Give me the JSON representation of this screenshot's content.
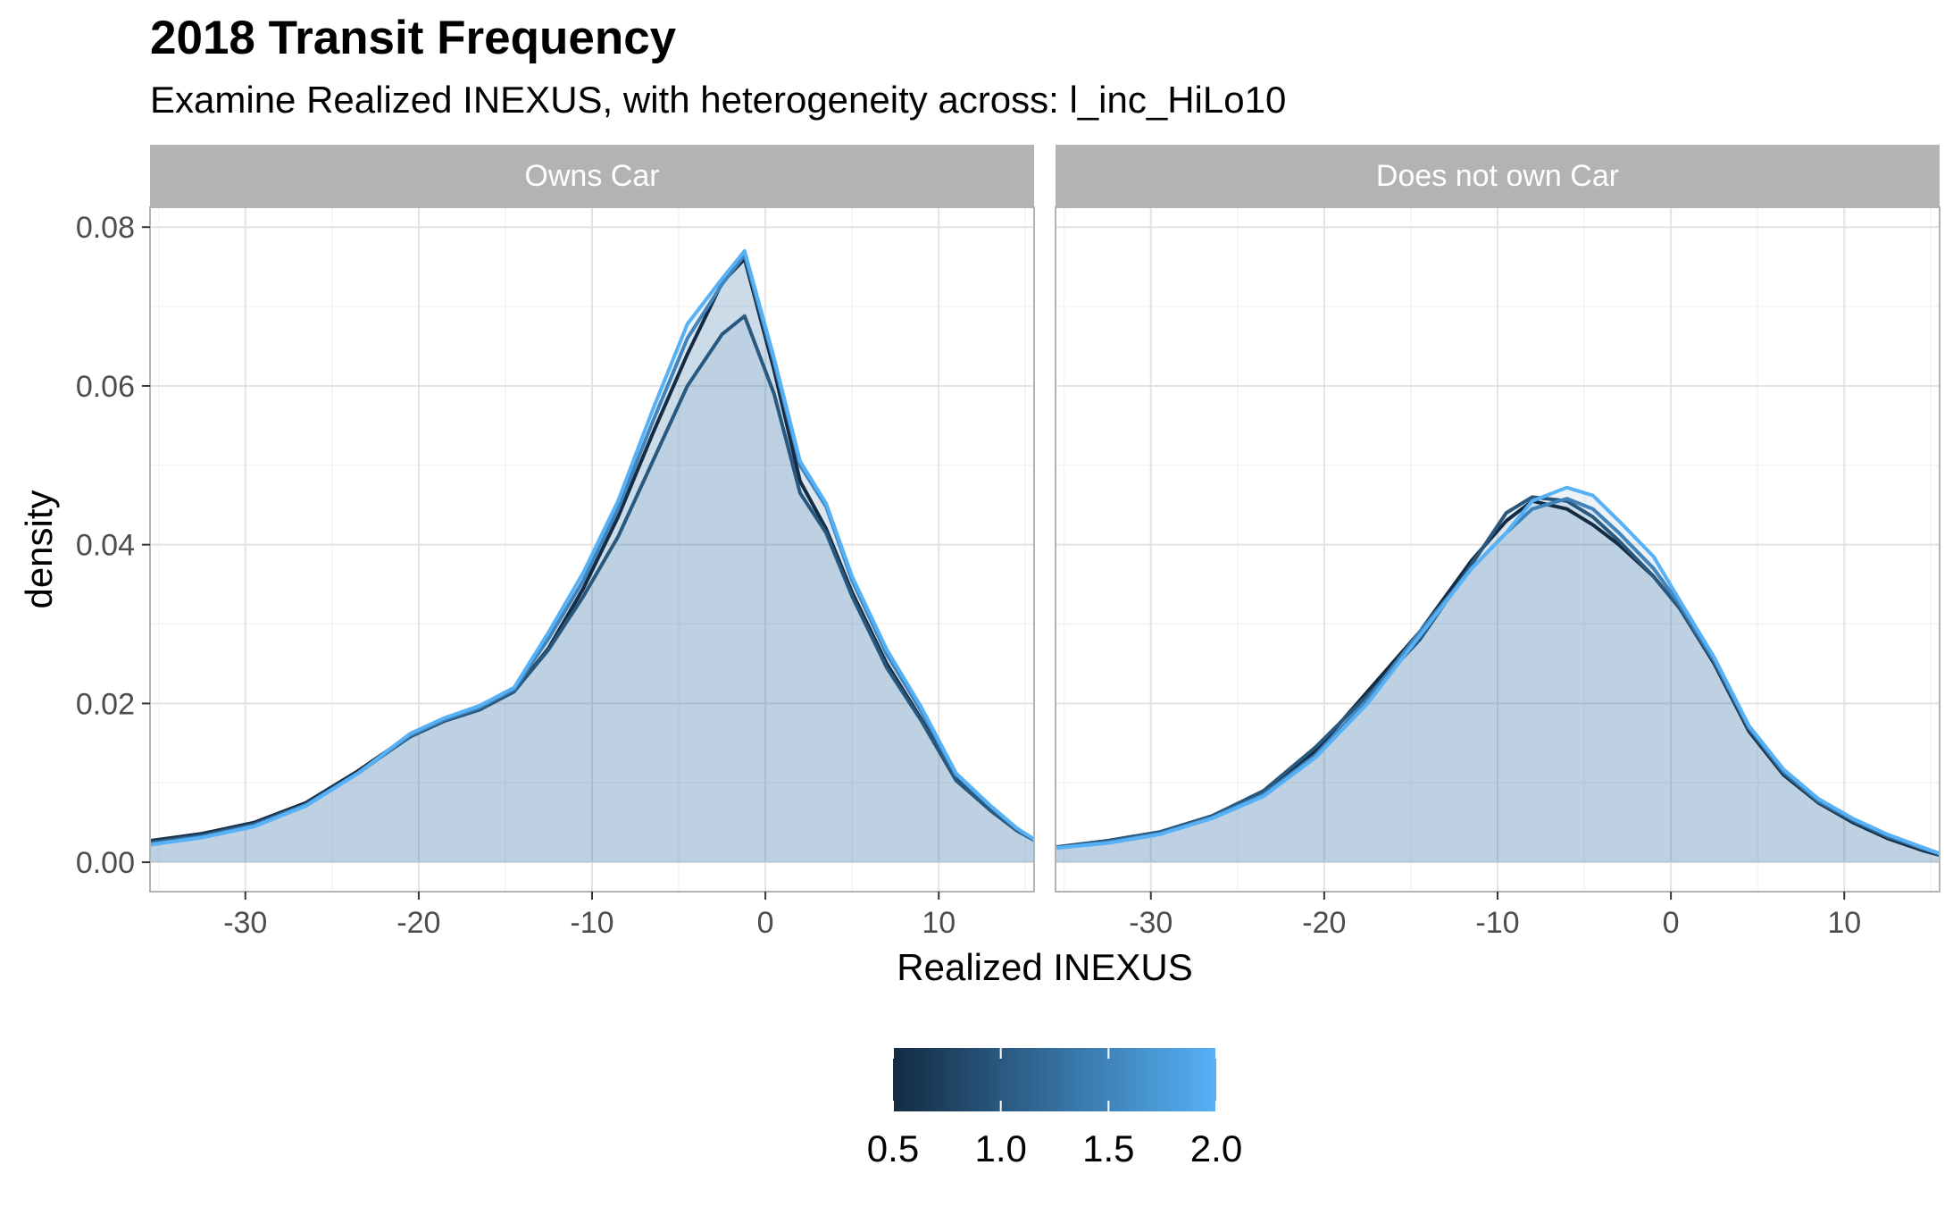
{
  "chart_data": {
    "type": "area",
    "title": "2018 Transit Frequency",
    "subtitle": "Examine Realized INEXUS, with heterogeneity across: l_inc_HiLo10",
    "xlabel": "Realized INEXUS",
    "ylabel": "density",
    "xlim": [
      -35.5,
      15.5
    ],
    "ylim": [
      -0.0037,
      0.0825
    ],
    "x_ticks": [
      -30,
      -20,
      -10,
      0,
      10
    ],
    "x_tick_labels": [
      "-30",
      "-20",
      "-10",
      "0",
      "10"
    ],
    "y_ticks": [
      0.0,
      0.02,
      0.04,
      0.06,
      0.08
    ],
    "y_tick_labels": [
      "0.00",
      "0.02",
      "0.04",
      "0.06",
      "0.08"
    ],
    "grid": true,
    "legend": {
      "type": "colorbar",
      "position": "bottom",
      "labels": [
        "0.5",
        "1.0",
        "1.5",
        "2.0"
      ],
      "values": [
        0.5,
        1.0,
        1.5,
        2.0
      ],
      "range": [
        0.5,
        2.0
      ],
      "color_low": "#132b43",
      "color_high": "#56b1f7"
    },
    "fill_color": "#4682b4",
    "panels": [
      {
        "strip": "Owns Car",
        "series": [
          {
            "value": 0.5,
            "x": [
              -35.5,
              -32.5,
              -29.5,
              -26.5,
              -23.5,
              -20.5,
              -18.5,
              -16.5,
              -14.5,
              -12.5,
              -10.5,
              -8.5,
              -6.5,
              -4.5,
              -2.5,
              -1.2,
              0.5,
              2.0,
              3.5,
              5.0,
              7.0,
              9.0,
              11.0,
              13.0,
              14.5,
              15.5
            ],
            "y": [
              0.0027,
              0.0036,
              0.005,
              0.0075,
              0.0115,
              0.016,
              0.018,
              0.0192,
              0.0215,
              0.027,
              0.0345,
              0.0435,
              0.054,
              0.064,
              0.073,
              0.076,
              0.062,
              0.048,
              0.042,
              0.034,
              0.025,
              0.018,
              0.0105,
              0.0065,
              0.004,
              0.0028
            ]
          },
          {
            "value": 1.0,
            "x": [
              -35.5,
              -32.5,
              -29.5,
              -26.5,
              -23.5,
              -20.5,
              -18.5,
              -16.5,
              -14.5,
              -12.5,
              -10.5,
              -8.5,
              -6.5,
              -4.5,
              -2.5,
              -1.2,
              0.5,
              2.0,
              3.5,
              5.0,
              7.0,
              9.0,
              11.0,
              13.0,
              14.5,
              15.5
            ],
            "y": [
              0.0025,
              0.0034,
              0.0048,
              0.0073,
              0.0113,
              0.0158,
              0.0178,
              0.0192,
              0.0215,
              0.0268,
              0.0335,
              0.041,
              0.0505,
              0.06,
              0.0665,
              0.0688,
              0.059,
              0.0465,
              0.0415,
              0.0335,
              0.0245,
              0.0178,
              0.0103,
              0.0065,
              0.004,
              0.0028
            ]
          },
          {
            "value": 1.5,
            "x": [
              -35.5,
              -32.5,
              -29.5,
              -26.5,
              -23.5,
              -20.5,
              -18.5,
              -16.5,
              -14.5,
              -12.5,
              -10.5,
              -8.5,
              -6.5,
              -4.5,
              -2.5,
              -1.2,
              0.5,
              2.0,
              3.5,
              5.0,
              7.0,
              9.0,
              11.0,
              13.0,
              14.5,
              15.5
            ],
            "y": [
              0.0023,
              0.0032,
              0.0046,
              0.0072,
              0.0112,
              0.016,
              0.018,
              0.0195,
              0.0218,
              0.0282,
              0.0355,
              0.0445,
              0.0555,
              0.066,
              0.0728,
              0.0765,
              0.063,
              0.05,
              0.0448,
              0.0355,
              0.0262,
              0.019,
              0.011,
              0.007,
              0.0042,
              0.0029
            ]
          },
          {
            "value": 2.0,
            "x": [
              -35.5,
              -32.5,
              -29.5,
              -26.5,
              -23.5,
              -20.5,
              -18.5,
              -16.5,
              -14.5,
              -12.5,
              -10.5,
              -8.5,
              -6.5,
              -4.5,
              -2.5,
              -1.2,
              0.5,
              2.0,
              3.5,
              5.0,
              7.0,
              9.0,
              11.0,
              13.0,
              14.5,
              15.5
            ],
            "y": [
              0.0022,
              0.0031,
              0.0045,
              0.0071,
              0.0112,
              0.0162,
              0.0182,
              0.0197,
              0.022,
              0.029,
              0.0365,
              0.0455,
              0.057,
              0.0678,
              0.0735,
              0.077,
              0.0635,
              0.0505,
              0.0452,
              0.036,
              0.0268,
              0.0195,
              0.0112,
              0.0071,
              0.0043,
              0.0029
            ]
          }
        ]
      },
      {
        "strip": "Does not own Car",
        "series": [
          {
            "value": 0.5,
            "x": [
              -35.5,
              -32.5,
              -29.5,
              -26.5,
              -23.5,
              -20.5,
              -17.5,
              -14.5,
              -11.5,
              -9.5,
              -8.0,
              -6.0,
              -4.5,
              -3.0,
              -1.0,
              0.5,
              2.5,
              4.5,
              6.5,
              8.5,
              10.5,
              12.5,
              14.5,
              15.5
            ],
            "y": [
              0.0019,
              0.0027,
              0.0038,
              0.0058,
              0.0088,
              0.014,
              0.0215,
              0.029,
              0.038,
              0.043,
              0.0455,
              0.0445,
              0.0425,
              0.04,
              0.036,
              0.032,
              0.025,
              0.0165,
              0.011,
              0.0075,
              0.005,
              0.003,
              0.0015,
              0.0009
            ]
          },
          {
            "value": 1.0,
            "x": [
              -35.5,
              -32.5,
              -29.5,
              -26.5,
              -23.5,
              -20.5,
              -17.5,
              -14.5,
              -11.5,
              -9.5,
              -8.0,
              -6.0,
              -4.5,
              -3.0,
              -1.0,
              0.5,
              2.5,
              4.5,
              6.5,
              8.5,
              10.5,
              12.5,
              14.5,
              15.5
            ],
            "y": [
              0.0019,
              0.0027,
              0.0038,
              0.0058,
              0.009,
              0.0145,
              0.021,
              0.028,
              0.0375,
              0.044,
              0.046,
              0.0455,
              0.0435,
              0.0405,
              0.036,
              0.032,
              0.0252,
              0.0168,
              0.0112,
              0.0076,
              0.0052,
              0.0032,
              0.0017,
              0.001
            ]
          },
          {
            "value": 1.5,
            "x": [
              -35.5,
              -32.5,
              -29.5,
              -26.5,
              -23.5,
              -20.5,
              -17.5,
              -14.5,
              -11.5,
              -9.5,
              -8.0,
              -6.0,
              -4.5,
              -3.0,
              -1.0,
              0.5,
              2.5,
              4.5,
              6.5,
              8.5,
              10.5,
              12.5,
              14.5,
              15.5
            ],
            "y": [
              0.0018,
              0.0025,
              0.0036,
              0.0056,
              0.0085,
              0.0135,
              0.0205,
              0.029,
              0.037,
              0.0415,
              0.0445,
              0.0458,
              0.0445,
              0.0415,
              0.037,
              0.0325,
              0.0255,
              0.017,
              0.0115,
              0.0078,
              0.0054,
              0.0034,
              0.0018,
              0.0011
            ]
          },
          {
            "value": 2.0,
            "x": [
              -35.5,
              -32.5,
              -29.5,
              -26.5,
              -23.5,
              -20.5,
              -17.5,
              -14.5,
              -11.5,
              -9.5,
              -8.0,
              -6.0,
              -4.5,
              -3.0,
              -1.0,
              0.5,
              2.5,
              4.5,
              6.5,
              8.5,
              10.5,
              12.5,
              14.5,
              15.5
            ],
            "y": [
              0.0018,
              0.0024,
              0.0035,
              0.0055,
              0.0083,
              0.0132,
              0.02,
              0.0285,
              0.037,
              0.0415,
              0.0455,
              0.0472,
              0.0462,
              0.043,
              0.0385,
              0.033,
              0.0258,
              0.0172,
              0.0117,
              0.008,
              0.0055,
              0.0035,
              0.0019,
              0.0011
            ]
          }
        ]
      }
    ]
  }
}
